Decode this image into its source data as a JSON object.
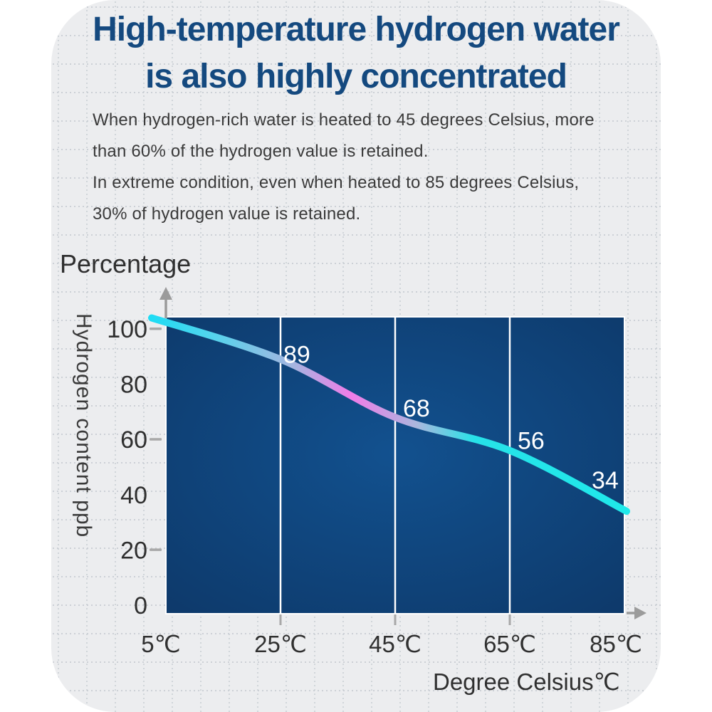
{
  "panel": {
    "outer_bg": "#ffffff",
    "bg": "#ecedef",
    "grid_dot_color": "#c9ced3"
  },
  "title": {
    "text_line1": "High-temperature hydrogen water",
    "text_line2": "is also highly concentrated",
    "color": "#14497f"
  },
  "description": {
    "lines": [
      "When hydrogen-rich water is heated to 45 degrees Celsius, more",
      "than 60% of the hydrogen value is retained.",
      "In extreme condition, even when heated to 85 degrees Celsius,",
      "30% of hydrogen value is retained."
    ]
  },
  "chart_data": {
    "type": "line",
    "title": "Percentage",
    "ylabel": "Hydrogen content ppb",
    "xlabel": "Degree Celsius℃",
    "categories": [
      "5℃",
      "25℃",
      "45℃",
      "65℃",
      "85℃"
    ],
    "values": [
      104,
      89,
      68,
      56,
      34
    ],
    "data_labels": [
      "",
      "89",
      "68",
      "56",
      "34"
    ],
    "yticks": [
      0,
      20,
      40,
      60,
      80,
      100
    ],
    "ticked_yvalues": [
      100,
      60,
      20
    ],
    "ylim": [
      0,
      107
    ],
    "grid": "vertical dividers only, white",
    "legend": "none",
    "plot_bg_center": "#12518f",
    "plot_bg_edge": "#0d3767",
    "divider_color": "#ffffff",
    "axis_color": "#9b9b9b",
    "tick_mark_color": "#a8a8a8",
    "data_label_color": "#ffffff",
    "tick_label_color": "#2f2f2f",
    "line_gradient": [
      {
        "offset": 0,
        "color": "#1fdcf4"
      },
      {
        "offset": 0.13,
        "color": "#55d4ec"
      },
      {
        "offset": 0.3,
        "color": "#a6b4e0"
      },
      {
        "offset": 0.42,
        "color": "#f07ce8"
      },
      {
        "offset": 0.56,
        "color": "#a9b8de"
      },
      {
        "offset": 0.68,
        "color": "#27e2e8"
      },
      {
        "offset": 1,
        "color": "#1fe9ea"
      }
    ]
  }
}
